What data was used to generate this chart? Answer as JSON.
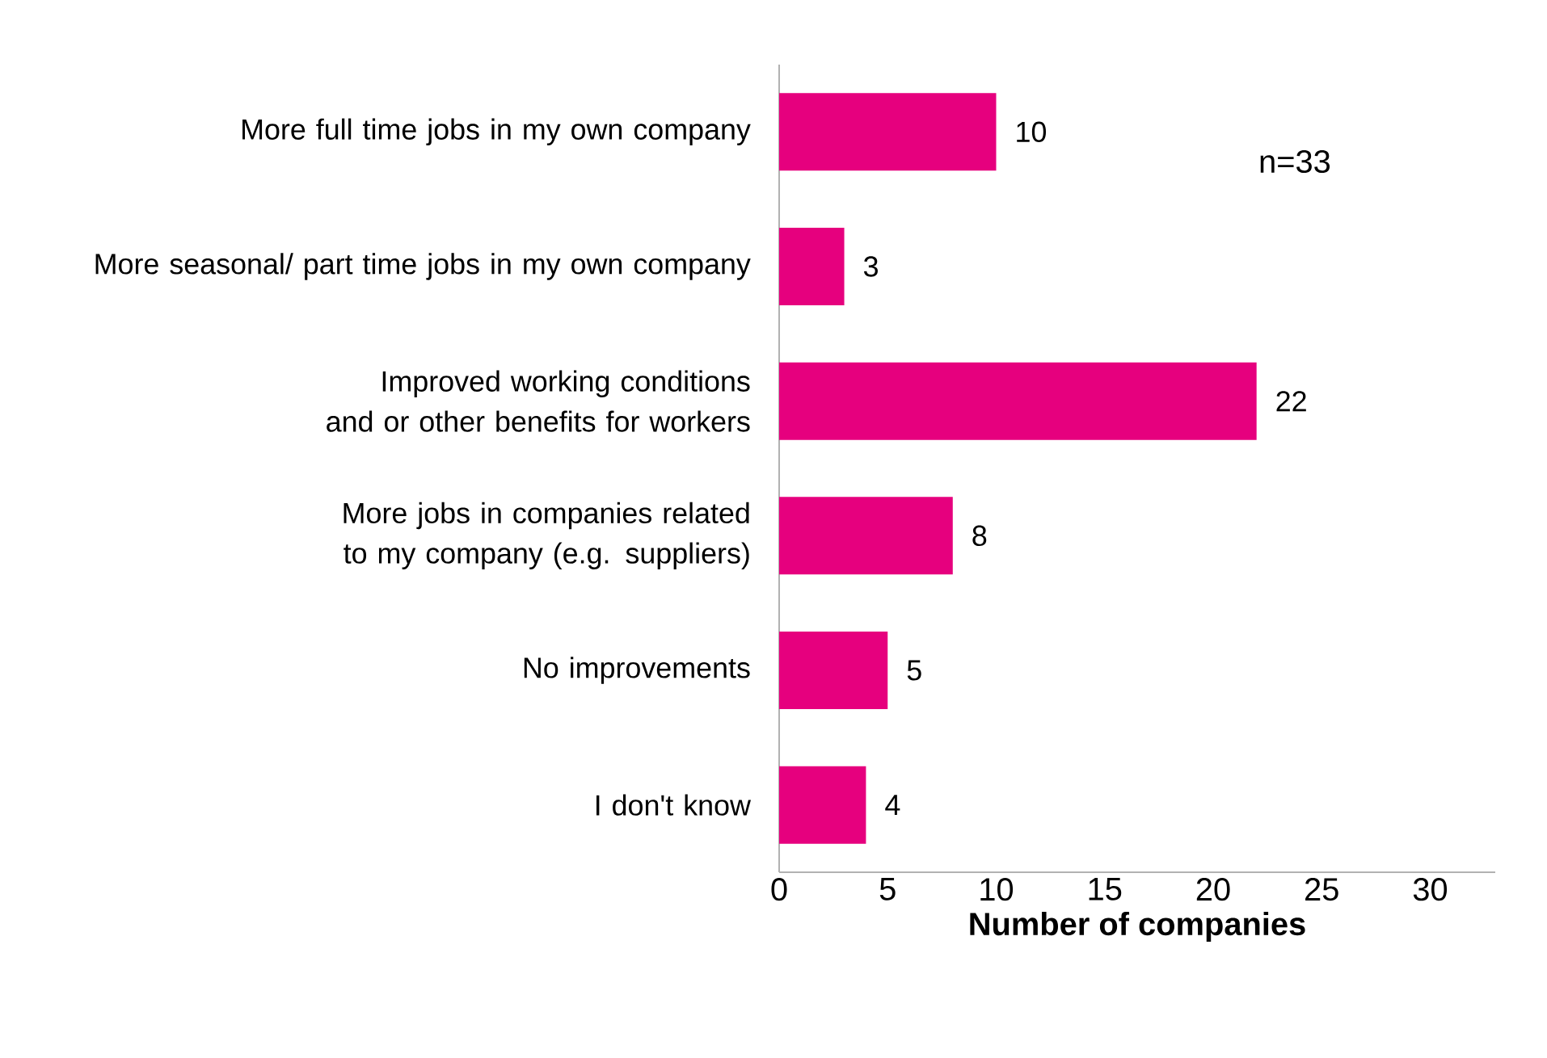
{
  "chart_data": {
    "type": "bar",
    "orientation": "horizontal",
    "xlabel": "Number of companies",
    "categories": [
      "More full time jobs in my own company",
      "More seasonal/ part time jobs in my own company",
      "Improved working conditions and or other benefits for workers",
      "More jobs in companies related to my company (e.g. suppliers)",
      "No improvements",
      "I don't know"
    ],
    "values": [
      10,
      3,
      22,
      8,
      5,
      4
    ],
    "color": "#e6007e",
    "data_labels": true,
    "xlim": [
      0,
      33
    ],
    "xticks": [
      0,
      5,
      10,
      15,
      20,
      25,
      30
    ],
    "annotations": [
      "n=33"
    ],
    "grid": false
  }
}
